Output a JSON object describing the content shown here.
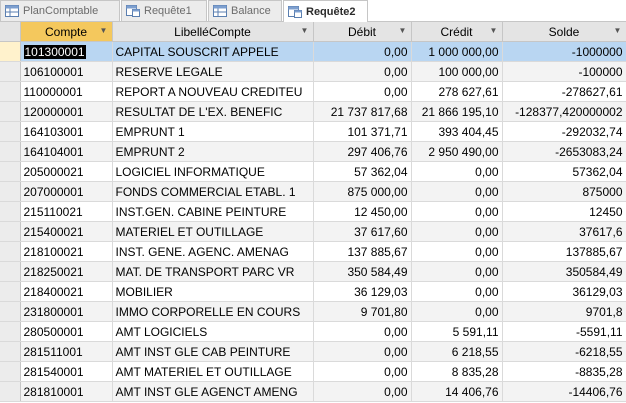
{
  "tabs": [
    {
      "label": "PlanComptable",
      "icon": "table-icon",
      "active": false
    },
    {
      "label": "Requête1",
      "icon": "query-icon",
      "active": false
    },
    {
      "label": "Balance",
      "icon": "table-icon",
      "active": false
    },
    {
      "label": "Requête2",
      "icon": "query-icon",
      "active": true
    }
  ],
  "columns": {
    "compte": "Compte",
    "libelle": "LibelléCompte",
    "debit": "Débit",
    "credit": "Crédit",
    "solde": "Solde"
  },
  "rows": [
    {
      "compte": "101300001",
      "libelle": "CAPITAL SOUSCRIT APPELE",
      "debit": "0,00",
      "credit": "1 000 000,00",
      "solde": "-1000000"
    },
    {
      "compte": "106100001",
      "libelle": "RESERVE LEGALE",
      "debit": "0,00",
      "credit": "100 000,00",
      "solde": "-100000"
    },
    {
      "compte": "110000001",
      "libelle": "REPORT A NOUVEAU CREDITEU",
      "debit": "0,00",
      "credit": "278 627,61",
      "solde": "-278627,61"
    },
    {
      "compte": "120000001",
      "libelle": "RESULTAT DE L'EX. BENEFIC",
      "debit": "21 737 817,68",
      "credit": "21 866 195,10",
      "solde": "-128377,420000002"
    },
    {
      "compte": "164103001",
      "libelle": "EMPRUNT 1",
      "debit": "101 371,71",
      "credit": "393 404,45",
      "solde": "-292032,74"
    },
    {
      "compte": "164104001",
      "libelle": "EMPRUNT 2",
      "debit": "297 406,76",
      "credit": "2 950 490,00",
      "solde": "-2653083,24"
    },
    {
      "compte": "205000021",
      "libelle": "LOGICIEL INFORMATIQUE",
      "debit": "57 362,04",
      "credit": "0,00",
      "solde": "57362,04"
    },
    {
      "compte": "207000001",
      "libelle": "FONDS COMMERCIAL ETABL. 1",
      "debit": "875 000,00",
      "credit": "0,00",
      "solde": "875000"
    },
    {
      "compte": "215110021",
      "libelle": "INST.GEN. CABINE PEINTURE",
      "debit": "12 450,00",
      "credit": "0,00",
      "solde": "12450"
    },
    {
      "compte": "215400021",
      "libelle": "MATERIEL ET OUTILLAGE",
      "debit": "37 617,60",
      "credit": "0,00",
      "solde": "37617,6"
    },
    {
      "compte": "218100021",
      "libelle": "INST. GENE. AGENC. AMENAG",
      "debit": "137 885,67",
      "credit": "0,00",
      "solde": "137885,67"
    },
    {
      "compte": "218250021",
      "libelle": "MAT. DE TRANSPORT PARC VR",
      "debit": "350 584,49",
      "credit": "0,00",
      "solde": "350584,49"
    },
    {
      "compte": "218400021",
      "libelle": "MOBILIER",
      "debit": "36 129,03",
      "credit": "0,00",
      "solde": "36129,03"
    },
    {
      "compte": "231800001",
      "libelle": "IMMO CORPORELLE EN COURS",
      "debit": "9 701,80",
      "credit": "0,00",
      "solde": "9701,8"
    },
    {
      "compte": "280500001",
      "libelle": "AMT LOGICIELS",
      "debit": "0,00",
      "credit": "5 591,11",
      "solde": "-5591,11"
    },
    {
      "compte": "281511001",
      "libelle": "AMT INST GLE CAB PEINTURE",
      "debit": "0,00",
      "credit": "6 218,55",
      "solde": "-6218,55"
    },
    {
      "compte": "281540001",
      "libelle": "AMT MATERIEL ET OUTILLAGE",
      "debit": "0,00",
      "credit": "8 835,28",
      "solde": "-8835,28"
    },
    {
      "compte": "281810001",
      "libelle": "AMT INST GLE AGENCT AMENG",
      "debit": "0,00",
      "credit": "14 406,76",
      "solde": "-14406,76"
    }
  ],
  "current_row": 0,
  "colors": {
    "active_header": "#f4c85d",
    "current_row": "#b9d6f2",
    "tab_active_text": "#2b2b2b"
  }
}
